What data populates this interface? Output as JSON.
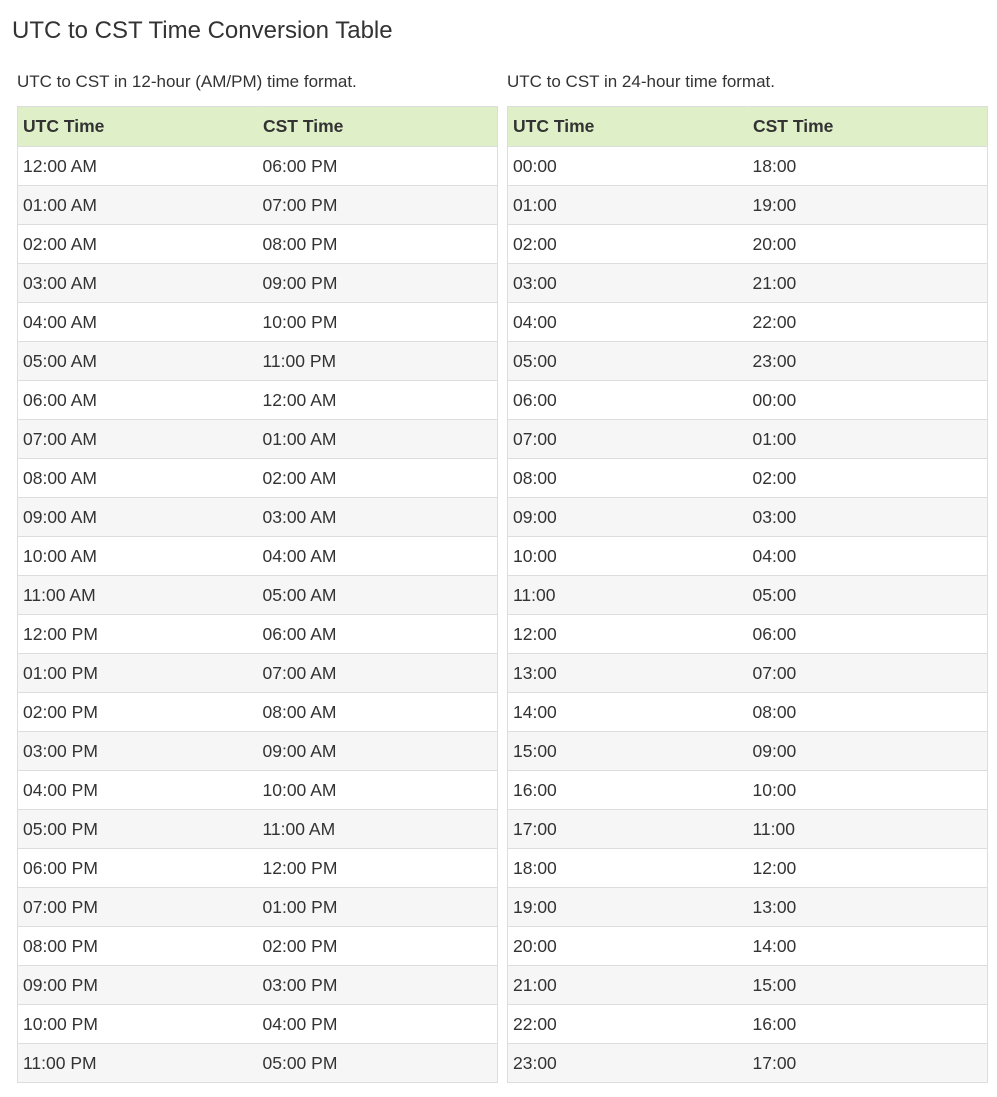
{
  "page": {
    "title": "UTC to CST Time Conversion Table"
  },
  "table12": {
    "caption": "UTC to CST in 12-hour (AM/PM) time format.",
    "headers": [
      "UTC Time",
      "CST Time"
    ],
    "rows": [
      [
        "12:00 AM",
        "06:00 PM"
      ],
      [
        "01:00 AM",
        "07:00 PM"
      ],
      [
        "02:00 AM",
        "08:00 PM"
      ],
      [
        "03:00 AM",
        "09:00 PM"
      ],
      [
        "04:00 AM",
        "10:00 PM"
      ],
      [
        "05:00 AM",
        "11:00 PM"
      ],
      [
        "06:00 AM",
        "12:00 AM"
      ],
      [
        "07:00 AM",
        "01:00 AM"
      ],
      [
        "08:00 AM",
        "02:00 AM"
      ],
      [
        "09:00 AM",
        "03:00 AM"
      ],
      [
        "10:00 AM",
        "04:00 AM"
      ],
      [
        "11:00 AM",
        "05:00 AM"
      ],
      [
        "12:00 PM",
        "06:00 AM"
      ],
      [
        "01:00 PM",
        "07:00 AM"
      ],
      [
        "02:00 PM",
        "08:00 AM"
      ],
      [
        "03:00 PM",
        "09:00 AM"
      ],
      [
        "04:00 PM",
        "10:00 AM"
      ],
      [
        "05:00 PM",
        "11:00 AM"
      ],
      [
        "06:00 PM",
        "12:00 PM"
      ],
      [
        "07:00 PM",
        "01:00 PM"
      ],
      [
        "08:00 PM",
        "02:00 PM"
      ],
      [
        "09:00 PM",
        "03:00 PM"
      ],
      [
        "10:00 PM",
        "04:00 PM"
      ],
      [
        "11:00 PM",
        "05:00 PM"
      ]
    ]
  },
  "table24": {
    "caption": "UTC to CST in 24-hour time format.",
    "headers": [
      "UTC Time",
      "CST Time"
    ],
    "rows": [
      [
        "00:00",
        "18:00"
      ],
      [
        "01:00",
        "19:00"
      ],
      [
        "02:00",
        "20:00"
      ],
      [
        "03:00",
        "21:00"
      ],
      [
        "04:00",
        "22:00"
      ],
      [
        "05:00",
        "23:00"
      ],
      [
        "06:00",
        "00:00"
      ],
      [
        "07:00",
        "01:00"
      ],
      [
        "08:00",
        "02:00"
      ],
      [
        "09:00",
        "03:00"
      ],
      [
        "10:00",
        "04:00"
      ],
      [
        "11:00",
        "05:00"
      ],
      [
        "12:00",
        "06:00"
      ],
      [
        "13:00",
        "07:00"
      ],
      [
        "14:00",
        "08:00"
      ],
      [
        "15:00",
        "09:00"
      ],
      [
        "16:00",
        "10:00"
      ],
      [
        "17:00",
        "11:00"
      ],
      [
        "18:00",
        "12:00"
      ],
      [
        "19:00",
        "13:00"
      ],
      [
        "20:00",
        "14:00"
      ],
      [
        "21:00",
        "15:00"
      ],
      [
        "22:00",
        "16:00"
      ],
      [
        "23:00",
        "17:00"
      ]
    ]
  },
  "colors": {
    "header_bg": "#dff0c8",
    "stripe_bg": "#f6f6f6",
    "border": "#dddddd",
    "text": "#333333"
  }
}
